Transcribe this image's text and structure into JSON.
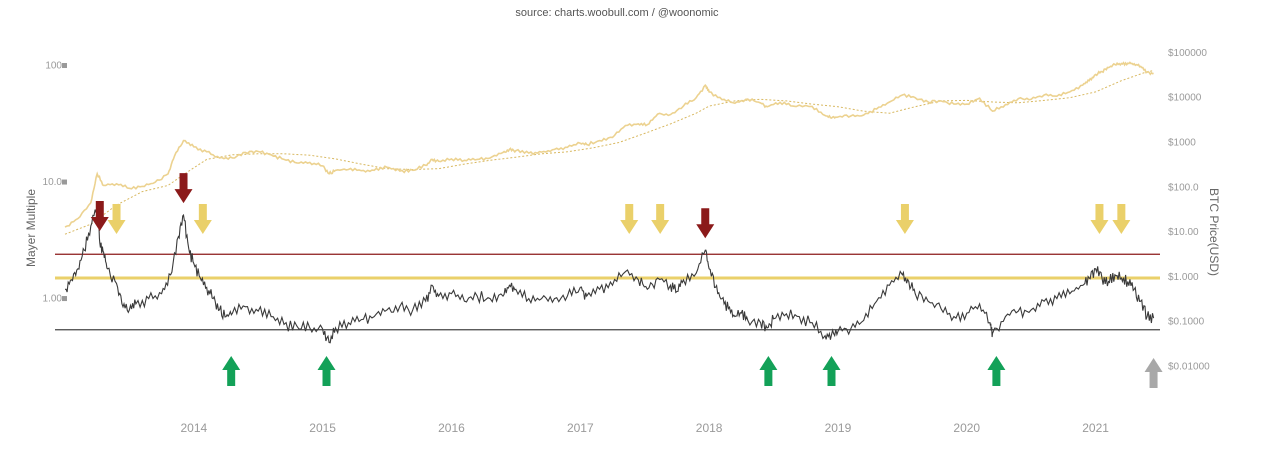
{
  "chart_data": {
    "type": "line",
    "source": "source: charts.woobull.com / @woonomic",
    "left_axis_label": "Mayer Multiple",
    "right_axis_label": "BTC Price(USD)",
    "left_ticks": [
      {
        "value": 100,
        "label": "100"
      },
      {
        "value": 10,
        "label": "10.0"
      },
      {
        "value": 1,
        "label": "1.00"
      }
    ],
    "right_ticks": [
      {
        "value": 100000,
        "label": "$100000"
      },
      {
        "value": 10000,
        "label": "$10000"
      },
      {
        "value": 1000,
        "label": "$1000"
      },
      {
        "value": 100,
        "label": "$100.0"
      },
      {
        "value": 10,
        "label": "$10.00"
      },
      {
        "value": 1,
        "label": "$1.000"
      },
      {
        "value": 0.1,
        "label": "$0.1000"
      },
      {
        "value": 0.01,
        "label": "$0.01000"
      }
    ],
    "x_ticks": [
      "2014",
      "2015",
      "2016",
      "2017",
      "2018",
      "2019",
      "2020",
      "2021"
    ],
    "x_range": [
      2013.0,
      2021.5
    ],
    "left_log_range": [
      0.2,
      150
    ],
    "right_log_range": [
      0.005,
      150000
    ],
    "reference_lines": [
      {
        "value": 2.4,
        "color": "#8b1a1a"
      },
      {
        "value": 1.5,
        "color": "#ead06a"
      },
      {
        "value": 0.54,
        "color": "#444444"
      }
    ],
    "mayer_multiple": [
      [
        2013.0,
        1.2
      ],
      [
        2013.05,
        1.45
      ],
      [
        2013.1,
        1.8
      ],
      [
        2013.15,
        2.6
      ],
      [
        2013.2,
        4.2
      ],
      [
        2013.25,
        6.5
      ],
      [
        2013.27,
        3.0
      ],
      [
        2013.3,
        2.5
      ],
      [
        2013.33,
        1.8
      ],
      [
        2013.4,
        1.35
      ],
      [
        2013.45,
        0.85
      ],
      [
        2013.5,
        0.8
      ],
      [
        2013.55,
        0.9
      ],
      [
        2013.65,
        1.0
      ],
      [
        2013.75,
        1.1
      ],
      [
        2013.82,
        1.6
      ],
      [
        2013.88,
        3.4
      ],
      [
        2013.92,
        5.2
      ],
      [
        2013.96,
        2.7
      ],
      [
        2014.0,
        2.0
      ],
      [
        2014.05,
        1.5
      ],
      [
        2014.1,
        1.25
      ],
      [
        2014.15,
        1.0
      ],
      [
        2014.2,
        0.8
      ],
      [
        2014.25,
        0.7
      ],
      [
        2014.3,
        0.75
      ],
      [
        2014.4,
        0.85
      ],
      [
        2014.5,
        0.78
      ],
      [
        2014.6,
        0.7
      ],
      [
        2014.7,
        0.6
      ],
      [
        2014.8,
        0.58
      ],
      [
        2014.9,
        0.56
      ],
      [
        2015.0,
        0.55
      ],
      [
        2015.05,
        0.42
      ],
      [
        2015.1,
        0.56
      ],
      [
        2015.2,
        0.62
      ],
      [
        2015.3,
        0.66
      ],
      [
        2015.4,
        0.7
      ],
      [
        2015.5,
        0.8
      ],
      [
        2015.6,
        0.86
      ],
      [
        2015.7,
        0.8
      ],
      [
        2015.8,
        0.95
      ],
      [
        2015.85,
        1.3
      ],
      [
        2015.9,
        1.05
      ],
      [
        2016.0,
        1.1
      ],
      [
        2016.1,
        0.95
      ],
      [
        2016.2,
        1.05
      ],
      [
        2016.3,
        1.0
      ],
      [
        2016.4,
        1.05
      ],
      [
        2016.45,
        1.3
      ],
      [
        2016.5,
        1.2
      ],
      [
        2016.6,
        1.0
      ],
      [
        2016.7,
        1.0
      ],
      [
        2016.8,
        1.0
      ],
      [
        2016.9,
        1.05
      ],
      [
        2017.0,
        1.25
      ],
      [
        2017.05,
        1.05
      ],
      [
        2017.15,
        1.2
      ],
      [
        2017.25,
        1.3
      ],
      [
        2017.35,
        1.7
      ],
      [
        2017.45,
        1.45
      ],
      [
        2017.52,
        1.2
      ],
      [
        2017.6,
        1.5
      ],
      [
        2017.7,
        1.3
      ],
      [
        2017.75,
        1.15
      ],
      [
        2017.8,
        1.45
      ],
      [
        2017.9,
        1.65
      ],
      [
        2017.97,
        2.6
      ],
      [
        2018.0,
        1.8
      ],
      [
        2018.05,
        1.25
      ],
      [
        2018.1,
        1.0
      ],
      [
        2018.15,
        0.82
      ],
      [
        2018.2,
        0.7
      ],
      [
        2018.25,
        0.75
      ],
      [
        2018.3,
        0.65
      ],
      [
        2018.4,
        0.62
      ],
      [
        2018.45,
        0.56
      ],
      [
        2018.5,
        0.67
      ],
      [
        2018.6,
        0.74
      ],
      [
        2018.7,
        0.7
      ],
      [
        2018.8,
        0.62
      ],
      [
        2018.9,
        0.48
      ],
      [
        2018.95,
        0.49
      ],
      [
        2019.0,
        0.52
      ],
      [
        2019.1,
        0.55
      ],
      [
        2019.2,
        0.65
      ],
      [
        2019.3,
        0.95
      ],
      [
        2019.4,
        1.3
      ],
      [
        2019.5,
        1.6
      ],
      [
        2019.55,
        1.4
      ],
      [
        2019.6,
        1.1
      ],
      [
        2019.7,
        0.95
      ],
      [
        2019.8,
        0.82
      ],
      [
        2019.9,
        0.7
      ],
      [
        2020.0,
        0.75
      ],
      [
        2020.1,
        0.9
      ],
      [
        2020.18,
        0.62
      ],
      [
        2020.2,
        0.5
      ],
      [
        2020.3,
        0.7
      ],
      [
        2020.4,
        0.78
      ],
      [
        2020.5,
        0.8
      ],
      [
        2020.6,
        0.95
      ],
      [
        2020.7,
        1.0
      ],
      [
        2020.8,
        1.1
      ],
      [
        2020.9,
        1.3
      ],
      [
        2020.95,
        1.5
      ],
      [
        2021.0,
        1.8
      ],
      [
        2021.05,
        1.5
      ],
      [
        2021.1,
        1.4
      ],
      [
        2021.15,
        1.6
      ],
      [
        2021.2,
        1.5
      ],
      [
        2021.25,
        1.4
      ],
      [
        2021.3,
        1.2
      ],
      [
        2021.35,
        0.95
      ],
      [
        2021.4,
        0.7
      ],
      [
        2021.45,
        0.68
      ]
    ],
    "btc_price": [
      [
        2013.0,
        13
      ],
      [
        2013.1,
        20
      ],
      [
        2013.2,
        45
      ],
      [
        2013.25,
        200
      ],
      [
        2013.3,
        110
      ],
      [
        2013.4,
        120
      ],
      [
        2013.5,
        95
      ],
      [
        2013.6,
        105
      ],
      [
        2013.7,
        130
      ],
      [
        2013.8,
        200
      ],
      [
        2013.85,
        500
      ],
      [
        2013.92,
        1100
      ],
      [
        2014.0,
        800
      ],
      [
        2014.1,
        620
      ],
      [
        2014.2,
        450
      ],
      [
        2014.3,
        450
      ],
      [
        2014.4,
        600
      ],
      [
        2014.5,
        630
      ],
      [
        2014.6,
        530
      ],
      [
        2014.7,
        420
      ],
      [
        2014.8,
        350
      ],
      [
        2014.9,
        360
      ],
      [
        2015.0,
        300
      ],
      [
        2015.05,
        200
      ],
      [
        2015.1,
        240
      ],
      [
        2015.2,
        250
      ],
      [
        2015.3,
        235
      ],
      [
        2015.4,
        240
      ],
      [
        2015.5,
        280
      ],
      [
        2015.6,
        230
      ],
      [
        2015.7,
        240
      ],
      [
        2015.8,
        310
      ],
      [
        2015.85,
        420
      ],
      [
        2015.9,
        380
      ],
      [
        2016.0,
        430
      ],
      [
        2016.1,
        400
      ],
      [
        2016.2,
        420
      ],
      [
        2016.3,
        450
      ],
      [
        2016.4,
        600
      ],
      [
        2016.45,
        700
      ],
      [
        2016.5,
        660
      ],
      [
        2016.6,
        580
      ],
      [
        2016.7,
        610
      ],
      [
        2016.8,
        700
      ],
      [
        2016.9,
        780
      ],
      [
        2017.0,
        960
      ],
      [
        2017.05,
        900
      ],
      [
        2017.15,
        1100
      ],
      [
        2017.25,
        1300
      ],
      [
        2017.35,
        2400
      ],
      [
        2017.45,
        2600
      ],
      [
        2017.52,
        2500
      ],
      [
        2017.6,
        4300
      ],
      [
        2017.7,
        4200
      ],
      [
        2017.8,
        6500
      ],
      [
        2017.9,
        10000
      ],
      [
        2017.97,
        19000
      ],
      [
        2018.0,
        13500
      ],
      [
        2018.1,
        9000
      ],
      [
        2018.2,
        7500
      ],
      [
        2018.3,
        9300
      ],
      [
        2018.4,
        7600
      ],
      [
        2018.45,
        6300
      ],
      [
        2018.55,
        7900
      ],
      [
        2018.65,
        6500
      ],
      [
        2018.8,
        6400
      ],
      [
        2018.9,
        4000
      ],
      [
        2018.95,
        3500
      ],
      [
        2019.0,
        3700
      ],
      [
        2019.1,
        3900
      ],
      [
        2019.2,
        4100
      ],
      [
        2019.3,
        5600
      ],
      [
        2019.4,
        8000
      ],
      [
        2019.5,
        11500
      ],
      [
        2019.6,
        10000
      ],
      [
        2019.7,
        8000
      ],
      [
        2019.8,
        8500
      ],
      [
        2019.9,
        7200
      ],
      [
        2020.0,
        7200
      ],
      [
        2020.1,
        9800
      ],
      [
        2020.2,
        5000
      ],
      [
        2020.3,
        7000
      ],
      [
        2020.4,
        9500
      ],
      [
        2020.5,
        9200
      ],
      [
        2020.6,
        11500
      ],
      [
        2020.7,
        10800
      ],
      [
        2020.8,
        13500
      ],
      [
        2020.9,
        19000
      ],
      [
        2020.95,
        24000
      ],
      [
        2021.0,
        33000
      ],
      [
        2021.05,
        38000
      ],
      [
        2021.1,
        47000
      ],
      [
        2021.15,
        55000
      ],
      [
        2021.2,
        58000
      ],
      [
        2021.25,
        59000
      ],
      [
        2021.3,
        57000
      ],
      [
        2021.35,
        50000
      ],
      [
        2021.4,
        37000
      ],
      [
        2021.45,
        35000
      ]
    ],
    "btc_200dma": [
      [
        2013.0,
        9
      ],
      [
        2013.2,
        15
      ],
      [
        2013.4,
        40
      ],
      [
        2013.6,
        80
      ],
      [
        2013.8,
        110
      ],
      [
        2013.95,
        220
      ],
      [
        2014.1,
        420
      ],
      [
        2014.3,
        530
      ],
      [
        2014.5,
        560
      ],
      [
        2014.7,
        560
      ],
      [
        2014.9,
        520
      ],
      [
        2015.1,
        430
      ],
      [
        2015.3,
        330
      ],
      [
        2015.5,
        260
      ],
      [
        2015.7,
        250
      ],
      [
        2015.9,
        260
      ],
      [
        2016.1,
        330
      ],
      [
        2016.3,
        400
      ],
      [
        2016.5,
        470
      ],
      [
        2016.7,
        560
      ],
      [
        2016.9,
        620
      ],
      [
        2017.1,
        760
      ],
      [
        2017.3,
        1000
      ],
      [
        2017.5,
        1600
      ],
      [
        2017.7,
        2600
      ],
      [
        2017.9,
        4500
      ],
      [
        2018.0,
        6500
      ],
      [
        2018.2,
        8500
      ],
      [
        2018.4,
        9200
      ],
      [
        2018.6,
        8500
      ],
      [
        2018.8,
        7200
      ],
      [
        2019.0,
        6300
      ],
      [
        2019.2,
        5000
      ],
      [
        2019.4,
        4500
      ],
      [
        2019.6,
        6300
      ],
      [
        2019.8,
        8500
      ],
      [
        2020.0,
        8700
      ],
      [
        2020.2,
        8000
      ],
      [
        2020.4,
        7700
      ],
      [
        2020.6,
        8700
      ],
      [
        2020.8,
        10000
      ],
      [
        2021.0,
        13500
      ],
      [
        2021.2,
        24000
      ],
      [
        2021.4,
        38000
      ],
      [
        2021.45,
        40000
      ]
    ],
    "annotations": [
      {
        "x": 2013.27,
        "kind": "top",
        "color": "#8b1a1a",
        "icon": "arrow-down-icon"
      },
      {
        "x": 2013.92,
        "kind": "top",
        "color": "#8b1a1a",
        "icon": "arrow-down-icon"
      },
      {
        "x": 2017.97,
        "kind": "top",
        "color": "#8b1a1a",
        "icon": "arrow-down-icon"
      },
      {
        "x": 2013.4,
        "kind": "warning",
        "color": "#ead06a",
        "icon": "arrow-down-icon"
      },
      {
        "x": 2014.07,
        "kind": "warning",
        "color": "#ead06a",
        "icon": "arrow-down-icon"
      },
      {
        "x": 2017.38,
        "kind": "warning",
        "color": "#ead06a",
        "icon": "arrow-down-icon"
      },
      {
        "x": 2017.62,
        "kind": "warning",
        "color": "#ead06a",
        "icon": "arrow-down-icon"
      },
      {
        "x": 2019.52,
        "kind": "warning",
        "color": "#ead06a",
        "icon": "arrow-down-icon"
      },
      {
        "x": 2021.03,
        "kind": "warning",
        "color": "#ead06a",
        "icon": "arrow-down-icon"
      },
      {
        "x": 2021.2,
        "kind": "warning",
        "color": "#ead06a",
        "icon": "arrow-down-icon"
      },
      {
        "x": 2014.29,
        "kind": "bottom",
        "color": "#13a158",
        "icon": "arrow-up-icon"
      },
      {
        "x": 2015.03,
        "kind": "bottom",
        "color": "#13a158",
        "icon": "arrow-up-icon"
      },
      {
        "x": 2018.46,
        "kind": "bottom",
        "color": "#13a158",
        "icon": "arrow-up-icon"
      },
      {
        "x": 2018.95,
        "kind": "bottom",
        "color": "#13a158",
        "icon": "arrow-up-icon"
      },
      {
        "x": 2020.23,
        "kind": "bottom",
        "color": "#13a158",
        "icon": "arrow-up-icon"
      },
      {
        "x": 2021.45,
        "kind": "current",
        "color": "#a8a8a8",
        "icon": "arrow-up-icon"
      }
    ],
    "colors": {
      "mayer_line": "#3a3a3a",
      "price_line": "#ecd290",
      "dma_line": "#d8b860",
      "tick_text": "#9a9a9a",
      "axis_label": "#666666",
      "left_tick_marker": "#999999"
    }
  }
}
